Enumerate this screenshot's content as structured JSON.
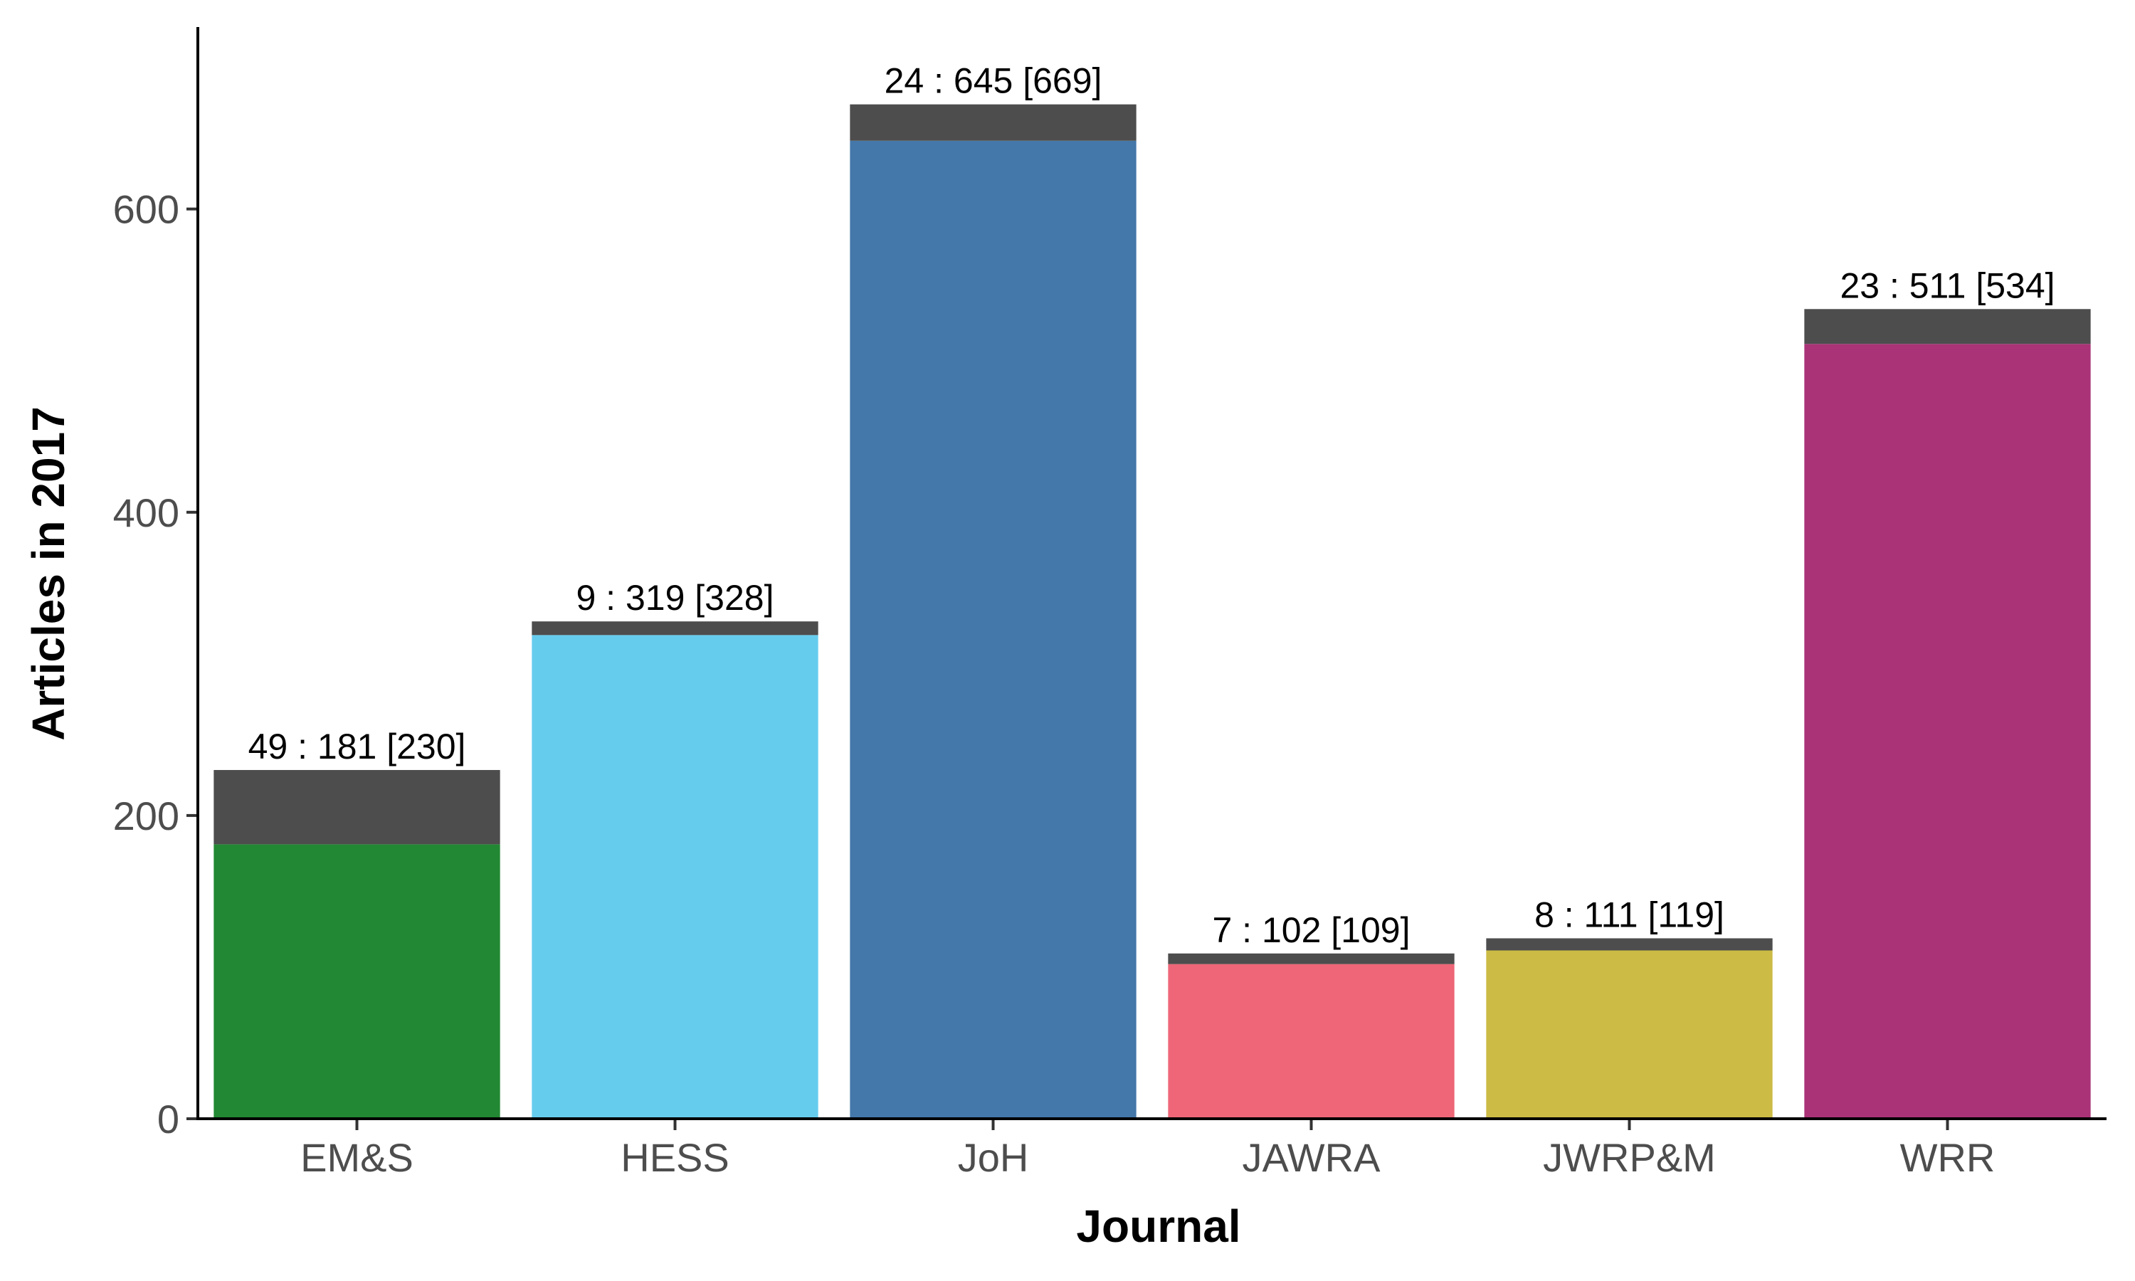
{
  "chart_data": {
    "type": "bar",
    "stacked": true,
    "title": "",
    "xlabel": "Journal",
    "ylabel": "Articles in 2017",
    "categories": [
      "EM&S",
      "HESS",
      "JoH",
      "JAWRA",
      "JWRP&M",
      "WRR"
    ],
    "series": [
      {
        "values": [
          181,
          319,
          645,
          102,
          111,
          511
        ],
        "colors": [
          "#228833",
          "#66CCEE",
          "#4477AA",
          "#EE6677",
          "#CCBB44",
          "#AA3377"
        ]
      },
      {
        "values": [
          49,
          9,
          24,
          7,
          8,
          23
        ],
        "color": "#4d4d4d"
      }
    ],
    "totals": [
      230,
      328,
      669,
      109,
      119,
      534
    ],
    "data_labels": [
      "49 : 181 [230]",
      "9 : 319 [328]",
      "24 : 645 [669]",
      "7 : 102 [109]",
      "8 : 111 [119]",
      "23 : 511 [534]"
    ],
    "ylim": [
      0,
      720
    ],
    "yticks": [
      0,
      200,
      400,
      600
    ],
    "grid": false,
    "legend": "none"
  }
}
